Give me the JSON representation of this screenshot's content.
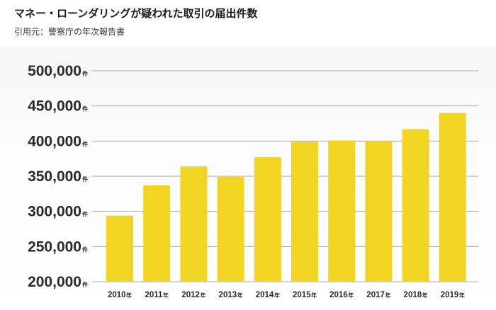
{
  "header": {
    "title": "マネー・ローンダリングが疑われた取引の届出件数",
    "source": "引用元：警察庁の年次報告書"
  },
  "colors": {
    "bar": "#f2d522",
    "gridline": "#a9a9a9",
    "axis_text": "#2a2a2a"
  },
  "chart_data": {
    "type": "bar",
    "title": "",
    "xlabel": "",
    "ylabel": "",
    "categories": [
      "2010",
      "2011",
      "2012",
      "2013",
      "2014",
      "2015",
      "2016",
      "2017",
      "2018",
      "2019"
    ],
    "category_suffix": "年",
    "values": [
      294000,
      337000,
      364000,
      349000,
      377000,
      399000,
      401000,
      400000,
      417000,
      440000
    ],
    "ylim": [
      200000,
      500000
    ],
    "yticks": [
      500000,
      450000,
      400000,
      350000,
      300000,
      250000,
      200000
    ],
    "ytick_labels": [
      "500,000",
      "450,000",
      "400,000",
      "350,000",
      "300,000",
      "250,000",
      "200,000"
    ],
    "ytick_suffix": "件",
    "grid": true,
    "legend": "none"
  }
}
